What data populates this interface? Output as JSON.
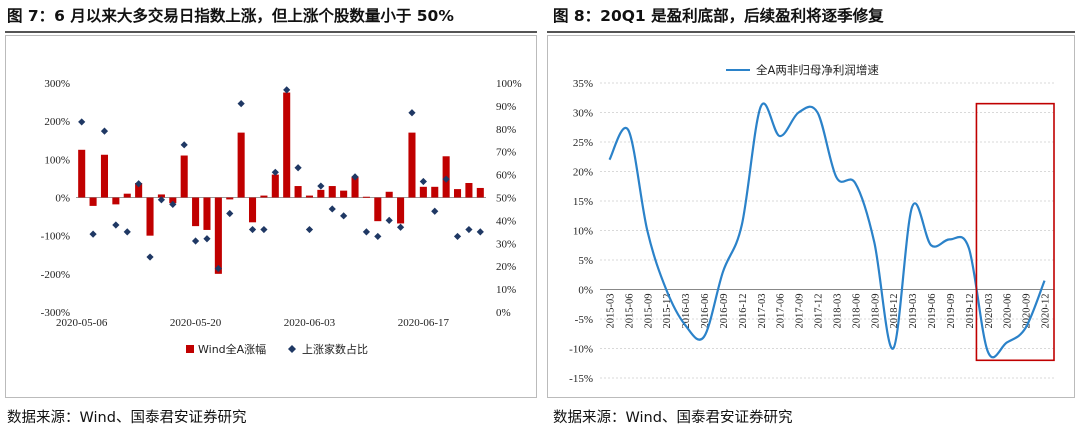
{
  "left": {
    "heading": "图 7：6 月以来大多交易日指数上涨，但上涨个股数量小于 50%",
    "source": "数据来源：Wind、国泰君安证券研究"
  },
  "right": {
    "heading": "图 8：20Q1 是盈利底部，后续盈利将逐季修复",
    "source": "数据来源：Wind、国泰君安证券研究"
  },
  "colors": {
    "bar": "#c00000",
    "marker": "#1f3864",
    "line": "#2b82c9",
    "highlight": "#c00000",
    "grid": "#d9d9d9"
  },
  "chart_data": [
    {
      "type": "bar",
      "title": "",
      "categories": [
        "2020-05-06",
        "2020-05-07",
        "2020-05-08",
        "2020-05-11",
        "2020-05-12",
        "2020-05-13",
        "2020-05-14",
        "2020-05-15",
        "2020-05-18",
        "2020-05-19",
        "2020-05-20",
        "2020-05-21",
        "2020-05-22",
        "2020-05-25",
        "2020-05-26",
        "2020-05-27",
        "2020-05-28",
        "2020-05-29",
        "2020-06-01",
        "2020-06-02",
        "2020-06-03",
        "2020-06-04",
        "2020-06-05",
        "2020-06-08",
        "2020-06-09",
        "2020-06-10",
        "2020-06-11",
        "2020-06-12",
        "2020-06-15",
        "2020-06-16",
        "2020-06-17",
        "2020-06-18",
        "2020-06-19",
        "2020-06-22",
        "2020-06-23",
        "2020-06-24"
      ],
      "xtick_labels": [
        "2020-05-06",
        "2020-05-20",
        "2020-06-03",
        "2020-06-17"
      ],
      "series": [
        {
          "name": "Wind全A涨幅",
          "axis": "left",
          "kind": "bar",
          "values": [
            125,
            -22,
            112,
            -18,
            10,
            38,
            -100,
            8,
            -15,
            110,
            -75,
            -85,
            -200,
            -5,
            170,
            -65,
            5,
            60,
            275,
            30,
            5,
            20,
            30,
            18,
            55,
            2,
            -62,
            15,
            -68,
            170,
            28,
            28,
            108,
            22,
            38,
            25
          ]
        },
        {
          "name": "上涨家数占比",
          "axis": "right",
          "kind": "scatter",
          "values": [
            83,
            34,
            79,
            38,
            35,
            56,
            24,
            49,
            47,
            73,
            31,
            32,
            19,
            43,
            91,
            36,
            36,
            61,
            97,
            63,
            36,
            55,
            45,
            42,
            59,
            35,
            33,
            40,
            37,
            87,
            57,
            44,
            58,
            33,
            36,
            35
          ]
        }
      ],
      "y_left": {
        "min": -300,
        "max": 300,
        "step": 100,
        "ticks": [
          "300%",
          "200%",
          "100%",
          "0%",
          "-100%",
          "-200%",
          "-300%"
        ]
      },
      "y_right": {
        "min": 0,
        "max": 100,
        "step": 10,
        "ticks": [
          "100%",
          "90%",
          "80%",
          "70%",
          "60%",
          "50%",
          "40%",
          "30%",
          "20%",
          "10%",
          "0%"
        ]
      },
      "legend_position": "bottom-center",
      "legend": [
        {
          "name": "Wind全A涨幅",
          "symbol": "square"
        },
        {
          "name": "上涨家数占比",
          "symbol": "diamond"
        }
      ]
    },
    {
      "type": "line",
      "title": "",
      "categories": [
        "2015-03",
        "2015-06",
        "2015-09",
        "2015-12",
        "2016-03",
        "2016-06",
        "2016-09",
        "2016-12",
        "2017-03",
        "2017-06",
        "2017-09",
        "2017-12",
        "2018-03",
        "2018-06",
        "2018-09",
        "2018-12",
        "2019-03",
        "2019-06",
        "2019-09",
        "2019-12",
        "2020-03",
        "2020-06",
        "2020-09",
        "2020-12"
      ],
      "series": [
        {
          "name": "全A两非归母净利润增速",
          "values": [
            22,
            27,
            10,
            0,
            -6,
            -8,
            3,
            11,
            31,
            26,
            30,
            30,
            19,
            18,
            8,
            -10,
            14,
            7.5,
            8.5,
            7,
            -10.5,
            -9,
            -6.5,
            1.5
          ]
        }
      ],
      "y": {
        "min": -15,
        "max": 35,
        "step": 5,
        "ticks": [
          "35%",
          "30%",
          "25%",
          "20%",
          "15%",
          "10%",
          "5%",
          "0%",
          "-5%",
          "-10%",
          "-15%"
        ]
      },
      "legend_position": "top-center",
      "highlight": {
        "from": "2020-03",
        "to": "2020-12"
      }
    }
  ]
}
